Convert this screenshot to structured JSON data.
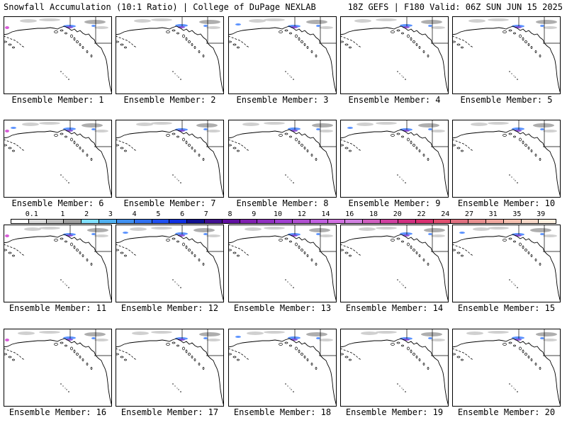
{
  "header": {
    "title_left": "Snowfall Accumulation (10:1 Ratio) | College of DuPage NEXLAB",
    "title_right": "18Z GEFS | F180 Valid: 06Z SUN JUN 15 2025"
  },
  "map": {
    "region": "North Pacific / Alaska / Western Canada / Western US",
    "land_color": "#ffffff",
    "ocean_color": "#ffffff",
    "coastline_color": "#000000"
  },
  "members": [
    {
      "label": "Ensemble Member: 1",
      "member": 1
    },
    {
      "label": "Ensemble Member: 2",
      "member": 2
    },
    {
      "label": "Ensemble Member: 3",
      "member": 3
    },
    {
      "label": "Ensemble Member: 4",
      "member": 4
    },
    {
      "label": "Ensemble Member: 5",
      "member": 5
    },
    {
      "label": "Ensemble Member: 6",
      "member": 6
    },
    {
      "label": "Ensemble Member: 7",
      "member": 7
    },
    {
      "label": "Ensemble Member: 8",
      "member": 8
    },
    {
      "label": "Ensemble Member: 9",
      "member": 9
    },
    {
      "label": "Ensemble Member: 10",
      "member": 10
    },
    {
      "label": "Ensemble Member: 11",
      "member": 11
    },
    {
      "label": "Ensemble Member: 12",
      "member": 12
    },
    {
      "label": "Ensemble Member: 13",
      "member": 13
    },
    {
      "label": "Ensemble Member: 14",
      "member": 14
    },
    {
      "label": "Ensemble Member: 15",
      "member": 15
    },
    {
      "label": "Ensemble Member: 16",
      "member": 16
    },
    {
      "label": "Ensemble Member: 17",
      "member": 17
    },
    {
      "label": "Ensemble Member: 18",
      "member": 18
    },
    {
      "label": "Ensemble Member: 19",
      "member": 19
    },
    {
      "label": "Ensemble Member: 20",
      "member": 20
    }
  ],
  "legend": {
    "ticks": [
      "0.1",
      "1",
      "2",
      "3",
      "4",
      "5",
      "6",
      "7",
      "8",
      "9",
      "10",
      "12",
      "14",
      "16",
      "18",
      "20",
      "22",
      "24",
      "27",
      "31",
      "35",
      "39"
    ],
    "colors": [
      "#ffffff",
      "#dcdcdc",
      "#c0c0c0",
      "#a0a0a0",
      "#80e0ff",
      "#50b0f0",
      "#4090f0",
      "#3070f0",
      "#2050f0",
      "#1030e0",
      "#101090",
      "#401090",
      "#6010a0",
      "#8020b0",
      "#9030c0",
      "#a040d0",
      "#b050d0",
      "#c060e0",
      "#d070e0",
      "#d080e0",
      "#d060c0",
      "#d040a0",
      "#d03080",
      "#d83070",
      "#e05070",
      "#e07080",
      "#e89090",
      "#f0a8a0",
      "#f5c0b0",
      "#f8d8c8",
      "#fff0e0"
    ]
  },
  "snow_colors": {
    "light": "#c8c8c8",
    "mid": "#a0a0a0",
    "blue": "#4080ff",
    "purple": "#8040d0",
    "magenta": "#d040d0"
  }
}
